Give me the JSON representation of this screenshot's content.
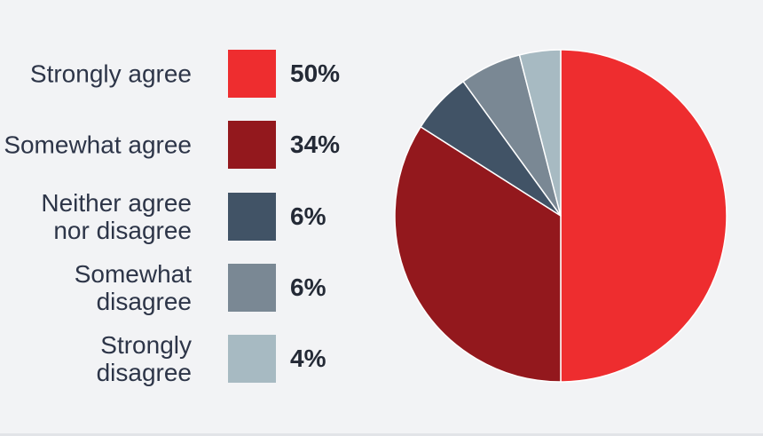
{
  "chart_data": {
    "type": "pie",
    "categories": [
      "Strongly agree",
      "Somewhat agree",
      "Neither agree nor disagree",
      "Somewhat disagree",
      "Strongly disagree"
    ],
    "values": [
      50,
      34,
      6,
      6,
      4
    ],
    "value_labels": [
      "50%",
      "34%",
      "6%",
      "6%",
      "4%"
    ],
    "colors": [
      "#ee2d2f",
      "#93181d",
      "#415366",
      "#7a8894",
      "#a7bac2"
    ],
    "legend_placement": "left",
    "start_angle": "12 o'clock",
    "direction": "clockwise"
  },
  "legend": [
    {
      "label": "Strongly agree",
      "value": "50%"
    },
    {
      "label": "Somewhat agree",
      "value": "34%"
    },
    {
      "label": "Neither agree nor disagree",
      "value": "6%"
    },
    {
      "label": "Somewhat disagree",
      "value": "6%"
    },
    {
      "label": "Strongly disagree",
      "value": "4%"
    }
  ]
}
